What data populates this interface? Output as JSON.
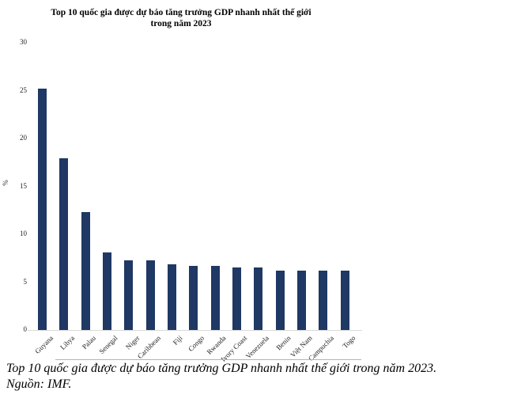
{
  "chart_data": {
    "type": "bar",
    "title": "Top 10 quốc gia được dự báo tăng trưởng GDP nhanh nhất thế giới trong năm 2023",
    "title_line1": "Top 10 quốc gia được dự báo tăng trưởng GDP nhanh nhất thế giới",
    "title_line2": "trong năm 2023",
    "ylabel": "%",
    "xlabel": "",
    "ylim": [
      0,
      30
    ],
    "yticks": [
      0,
      5,
      10,
      15,
      20,
      25,
      30
    ],
    "grid": false,
    "legend_position": "none",
    "bar_color": "#1f3864",
    "axis_line_color": "#d9d9d9",
    "categories": [
      "Guyana",
      "Libya",
      "Palau",
      "Senegal",
      "Niger",
      "Caribbean",
      "Fiji",
      "Congo",
      "Rwanda",
      "Ivory Coast",
      "Venezuela",
      "Benin",
      "Việt Nam",
      "Campuchia",
      "Togo"
    ],
    "values": [
      25.2,
      17.9,
      12.3,
      8.1,
      7.3,
      7.3,
      6.9,
      6.7,
      6.7,
      6.5,
      6.5,
      6.2,
      6.2,
      6.2,
      6.2
    ]
  },
  "caption": {
    "line1": "Top 10 quốc gia được dự báo tăng trưởng GDP nhanh nhất thế giới trong năm 2023.",
    "line2": "Nguồn: IMF."
  }
}
